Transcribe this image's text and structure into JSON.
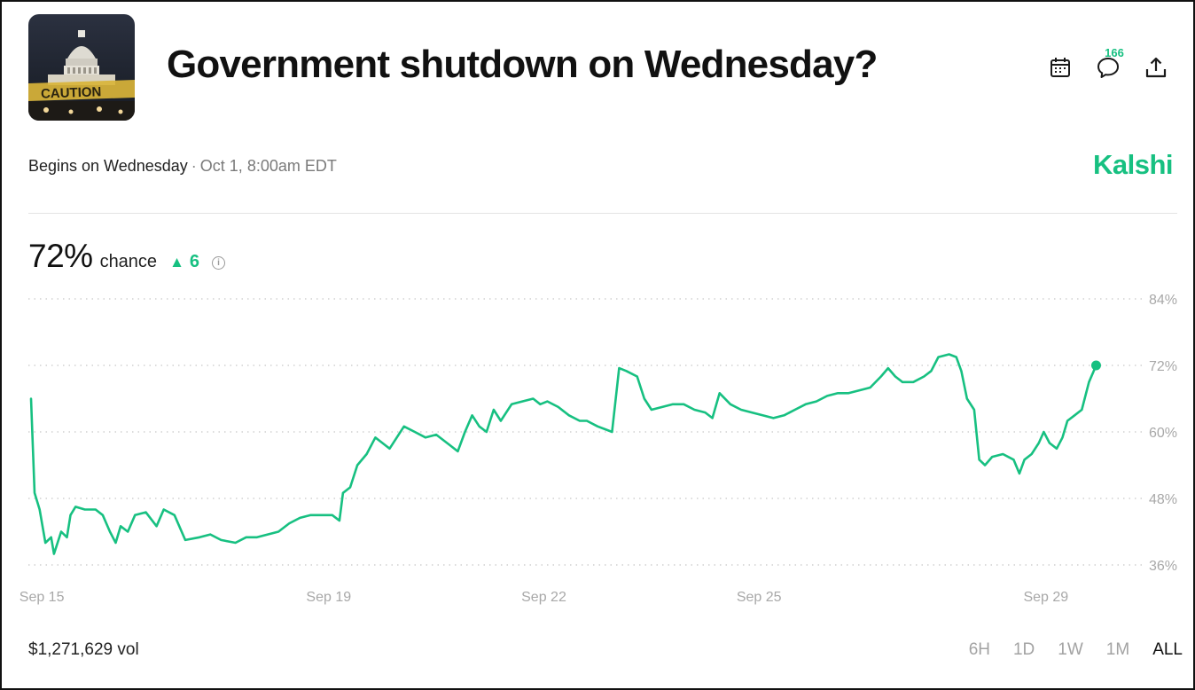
{
  "header": {
    "title": "Government shutdown on Wednesday?",
    "thumbnail_icon": "capitol-caution-image",
    "thumbnail_text": "CAUTION",
    "comment_count": "166",
    "icons": [
      "calendar-icon",
      "comment-icon",
      "share-icon"
    ]
  },
  "meta": {
    "begins_label": "Begins on Wednesday",
    "separator": "·",
    "date": "Oct 1, 8:00am EDT",
    "brand": "Kalshi"
  },
  "stats": {
    "chance_value": "72%",
    "chance_label": "chance",
    "delta_arrow": "▲",
    "delta_value": "6",
    "info_icon": "i",
    "volume": "$1,271,629 vol"
  },
  "ranges": [
    {
      "label": "6H",
      "active": false
    },
    {
      "label": "1D",
      "active": false
    },
    {
      "label": "1W",
      "active": false
    },
    {
      "label": "1M",
      "active": false
    },
    {
      "label": "ALL",
      "active": true
    }
  ],
  "colors": {
    "accent": "#17c081",
    "grid": "#c8c8c8",
    "tick": "#a8a8a8"
  },
  "chart_data": {
    "type": "line",
    "title": "",
    "xlabel": "",
    "ylabel": "",
    "xlim": [
      15.0,
      29.98
    ],
    "ylim": [
      34,
      86
    ],
    "y_ticks": [
      84,
      72,
      60,
      48,
      36
    ],
    "y_tick_labels": [
      "84%",
      "72%",
      "60%",
      "48%",
      "36%"
    ],
    "x_ticks": [
      15.15,
      19.15,
      22.15,
      25.15,
      29.15
    ],
    "x_tick_labels": [
      "Sep 15",
      "Sep 19",
      "Sep 22",
      "Sep 25",
      "Sep 29"
    ],
    "grid": true,
    "series": [
      {
        "name": "",
        "color": "#17c081",
        "points": [
          [
            15.0,
            66
          ],
          [
            15.05,
            49
          ],
          [
            15.12,
            46
          ],
          [
            15.2,
            40
          ],
          [
            15.28,
            41
          ],
          [
            15.32,
            38
          ],
          [
            15.42,
            42
          ],
          [
            15.5,
            41
          ],
          [
            15.55,
            45
          ],
          [
            15.62,
            46.5
          ],
          [
            15.75,
            46
          ],
          [
            15.9,
            46
          ],
          [
            16.0,
            45
          ],
          [
            16.1,
            42
          ],
          [
            16.18,
            40
          ],
          [
            16.25,
            43
          ],
          [
            16.35,
            42
          ],
          [
            16.45,
            45
          ],
          [
            16.6,
            45.5
          ],
          [
            16.75,
            43
          ],
          [
            16.85,
            46
          ],
          [
            17.0,
            45
          ],
          [
            17.15,
            40.5
          ],
          [
            17.35,
            41
          ],
          [
            17.5,
            41.5
          ],
          [
            17.65,
            40.5
          ],
          [
            17.85,
            40
          ],
          [
            18.0,
            41
          ],
          [
            18.15,
            41
          ],
          [
            18.3,
            41.5
          ],
          [
            18.45,
            42
          ],
          [
            18.6,
            43.5
          ],
          [
            18.75,
            44.5
          ],
          [
            18.9,
            45
          ],
          [
            19.05,
            45
          ],
          [
            19.2,
            45
          ],
          [
            19.3,
            44
          ],
          [
            19.35,
            49
          ],
          [
            19.45,
            50
          ],
          [
            19.55,
            54
          ],
          [
            19.68,
            56
          ],
          [
            19.8,
            59
          ],
          [
            19.9,
            58
          ],
          [
            20.0,
            57
          ],
          [
            20.1,
            59
          ],
          [
            20.2,
            61
          ],
          [
            20.35,
            60
          ],
          [
            20.5,
            59
          ],
          [
            20.65,
            59.5
          ],
          [
            20.8,
            58
          ],
          [
            20.95,
            56.5
          ],
          [
            21.05,
            60
          ],
          [
            21.15,
            63
          ],
          [
            21.25,
            61
          ],
          [
            21.35,
            60
          ],
          [
            21.45,
            64
          ],
          [
            21.55,
            62
          ],
          [
            21.7,
            65
          ],
          [
            21.85,
            65.5
          ],
          [
            22.0,
            66
          ],
          [
            22.1,
            65
          ],
          [
            22.2,
            65.5
          ],
          [
            22.35,
            64.5
          ],
          [
            22.5,
            63
          ],
          [
            22.65,
            62
          ],
          [
            22.75,
            62
          ],
          [
            22.9,
            61
          ],
          [
            23.0,
            60.5
          ],
          [
            23.1,
            60
          ],
          [
            23.2,
            71.5
          ],
          [
            23.3,
            71
          ],
          [
            23.45,
            70
          ],
          [
            23.55,
            66
          ],
          [
            23.65,
            64
          ],
          [
            23.8,
            64.5
          ],
          [
            23.95,
            65
          ],
          [
            24.1,
            65
          ],
          [
            24.25,
            64
          ],
          [
            24.4,
            63.5
          ],
          [
            24.5,
            62.5
          ],
          [
            24.6,
            67
          ],
          [
            24.75,
            65
          ],
          [
            24.9,
            64
          ],
          [
            25.05,
            63.5
          ],
          [
            25.2,
            63
          ],
          [
            25.35,
            62.5
          ],
          [
            25.5,
            63
          ],
          [
            25.65,
            64
          ],
          [
            25.8,
            65
          ],
          [
            25.95,
            65.5
          ],
          [
            26.1,
            66.5
          ],
          [
            26.25,
            67
          ],
          [
            26.4,
            67
          ],
          [
            26.55,
            67.5
          ],
          [
            26.7,
            68
          ],
          [
            26.85,
            70
          ],
          [
            26.95,
            71.5
          ],
          [
            27.05,
            70
          ],
          [
            27.15,
            69
          ],
          [
            27.3,
            69
          ],
          [
            27.45,
            70
          ],
          [
            27.55,
            71
          ],
          [
            27.65,
            73.5
          ],
          [
            27.8,
            74
          ],
          [
            27.9,
            73.5
          ],
          [
            27.97,
            71
          ],
          [
            28.05,
            66
          ],
          [
            28.15,
            64
          ],
          [
            28.22,
            55
          ],
          [
            28.3,
            54
          ],
          [
            28.4,
            55.5
          ],
          [
            28.55,
            56
          ],
          [
            28.7,
            55
          ],
          [
            28.78,
            52.5
          ],
          [
            28.85,
            55
          ],
          [
            28.95,
            56
          ],
          [
            29.05,
            58
          ],
          [
            29.12,
            60
          ],
          [
            29.2,
            58
          ],
          [
            29.3,
            57
          ],
          [
            29.38,
            59
          ],
          [
            29.45,
            62
          ],
          [
            29.55,
            63
          ],
          [
            29.65,
            64
          ],
          [
            29.75,
            69
          ],
          [
            29.85,
            72
          ]
        ]
      }
    ],
    "last_point_marker": true
  }
}
